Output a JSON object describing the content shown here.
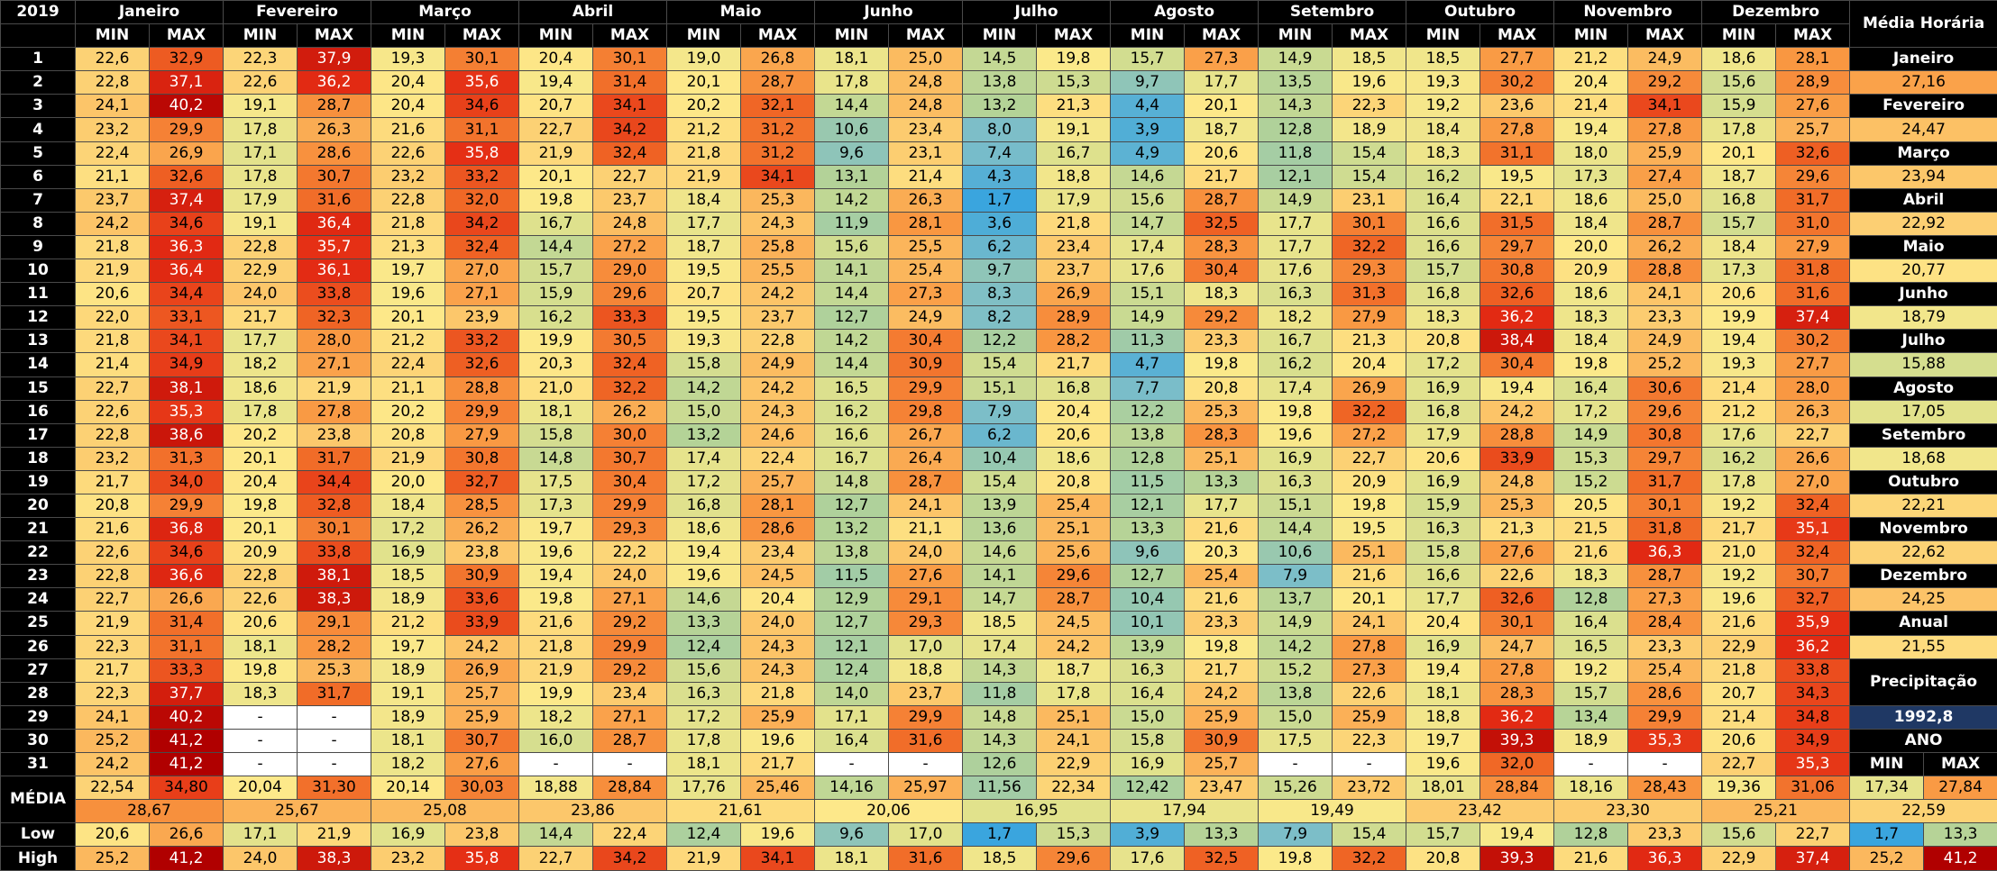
{
  "header": {
    "year": "2019",
    "months": [
      "Janeiro",
      "Fevereiro",
      "Março",
      "Abril",
      "Maio",
      "Junho",
      "Julho",
      "Agosto",
      "Setembro",
      "Outubro",
      "Novembro",
      "Dezembro"
    ],
    "side_title": "Média Horária",
    "min": "MIN",
    "max": "MAX"
  },
  "days": [
    {
      "label": "1",
      "values": [
        "22,6",
        "32,9",
        "22,3",
        "37,9",
        "19,3",
        "30,1",
        "20,4",
        "30,1",
        "19,0",
        "26,8",
        "18,1",
        "25,0",
        "14,5",
        "19,8",
        "15,7",
        "27,3",
        "14,9",
        "18,5",
        "18,5",
        "27,7",
        "21,2",
        "24,9",
        "18,6",
        "28,1"
      ]
    },
    {
      "label": "2",
      "values": [
        "22,8",
        "37,1",
        "22,6",
        "36,2",
        "20,4",
        "35,6",
        "19,4",
        "31,4",
        "20,1",
        "28,7",
        "17,8",
        "24,8",
        "13,8",
        "15,3",
        "9,7",
        "17,7",
        "13,5",
        "19,6",
        "19,3",
        "30,2",
        "20,4",
        "29,2",
        "15,6",
        "28,9"
      ]
    },
    {
      "label": "3",
      "values": [
        "24,1",
        "40,2",
        "19,1",
        "28,7",
        "20,4",
        "34,6",
        "20,7",
        "34,1",
        "20,2",
        "32,1",
        "14,4",
        "24,8",
        "13,2",
        "21,3",
        "4,4",
        "20,1",
        "14,3",
        "22,3",
        "19,2",
        "23,6",
        "21,4",
        "34,1",
        "15,9",
        "27,6"
      ]
    },
    {
      "label": "4",
      "values": [
        "23,2",
        "29,9",
        "17,8",
        "26,3",
        "21,6",
        "31,1",
        "22,7",
        "34,2",
        "21,2",
        "31,2",
        "10,6",
        "23,4",
        "8,0",
        "19,1",
        "3,9",
        "18,7",
        "12,8",
        "18,9",
        "18,4",
        "27,8",
        "19,4",
        "27,8",
        "17,8",
        "25,7"
      ]
    },
    {
      "label": "5",
      "values": [
        "22,4",
        "26,9",
        "17,1",
        "28,6",
        "22,6",
        "35,8",
        "21,9",
        "32,4",
        "21,8",
        "31,2",
        "9,6",
        "23,1",
        "7,4",
        "16,7",
        "4,9",
        "20,6",
        "11,8",
        "15,4",
        "18,3",
        "31,1",
        "18,0",
        "25,9",
        "20,1",
        "32,6"
      ]
    },
    {
      "label": "6",
      "values": [
        "21,1",
        "32,6",
        "17,8",
        "30,7",
        "23,2",
        "33,2",
        "20,1",
        "22,7",
        "21,9",
        "34,1",
        "13,1",
        "21,4",
        "4,3",
        "18,8",
        "14,6",
        "21,7",
        "12,1",
        "15,4",
        "16,2",
        "19,5",
        "17,3",
        "27,4",
        "18,7",
        "29,6"
      ]
    },
    {
      "label": "7",
      "values": [
        "23,7",
        "37,4",
        "17,9",
        "31,6",
        "22,8",
        "32,0",
        "19,8",
        "23,7",
        "18,4",
        "25,3",
        "14,2",
        "26,3",
        "1,7",
        "17,9",
        "15,6",
        "28,7",
        "14,9",
        "23,1",
        "16,4",
        "22,1",
        "18,6",
        "25,0",
        "16,8",
        "31,7"
      ]
    },
    {
      "label": "8",
      "values": [
        "24,2",
        "34,6",
        "19,1",
        "36,4",
        "21,8",
        "34,2",
        "16,7",
        "24,8",
        "17,7",
        "24,3",
        "11,9",
        "28,1",
        "3,6",
        "21,8",
        "14,7",
        "32,5",
        "17,7",
        "30,1",
        "16,6",
        "31,5",
        "18,4",
        "28,7",
        "15,7",
        "31,0"
      ]
    },
    {
      "label": "9",
      "values": [
        "21,8",
        "36,3",
        "22,8",
        "35,7",
        "21,3",
        "32,4",
        "14,4",
        "27,2",
        "18,7",
        "25,8",
        "15,6",
        "25,5",
        "6,2",
        "23,4",
        "17,4",
        "28,3",
        "17,7",
        "32,2",
        "16,6",
        "29,7",
        "20,0",
        "26,2",
        "18,4",
        "27,9"
      ]
    },
    {
      "label": "10",
      "values": [
        "21,9",
        "36,4",
        "22,9",
        "36,1",
        "19,7",
        "27,0",
        "15,7",
        "29,0",
        "19,5",
        "25,5",
        "14,1",
        "25,4",
        "9,7",
        "23,7",
        "17,6",
        "30,4",
        "17,6",
        "29,3",
        "15,7",
        "30,8",
        "20,9",
        "28,8",
        "17,3",
        "31,8"
      ]
    },
    {
      "label": "11",
      "values": [
        "20,6",
        "34,4",
        "24,0",
        "33,8",
        "19,6",
        "27,1",
        "15,9",
        "29,6",
        "20,7",
        "24,2",
        "14,4",
        "27,3",
        "8,3",
        "26,9",
        "15,1",
        "18,3",
        "16,3",
        "31,3",
        "16,8",
        "32,6",
        "18,6",
        "24,1",
        "20,6",
        "31,6"
      ]
    },
    {
      "label": "12",
      "values": [
        "22,0",
        "33,1",
        "21,7",
        "32,3",
        "20,1",
        "23,9",
        "16,2",
        "33,3",
        "19,5",
        "23,7",
        "12,7",
        "24,9",
        "8,2",
        "28,9",
        "14,9",
        "29,2",
        "18,2",
        "27,9",
        "18,3",
        "36,2",
        "18,3",
        "23,3",
        "19,9",
        "37,4"
      ]
    },
    {
      "label": "13",
      "values": [
        "21,8",
        "34,1",
        "17,7",
        "28,0",
        "21,2",
        "33,2",
        "19,9",
        "30,5",
        "19,3",
        "22,8",
        "14,2",
        "30,4",
        "12,2",
        "28,2",
        "11,3",
        "23,3",
        "16,7",
        "21,3",
        "20,8",
        "38,4",
        "18,4",
        "24,9",
        "19,4",
        "30,2"
      ]
    },
    {
      "label": "14",
      "values": [
        "21,4",
        "34,9",
        "18,2",
        "27,1",
        "22,4",
        "32,6",
        "20,3",
        "32,4",
        "15,8",
        "24,9",
        "14,4",
        "30,9",
        "15,4",
        "21,7",
        "4,7",
        "19,8",
        "16,2",
        "20,4",
        "17,2",
        "30,4",
        "19,8",
        "25,2",
        "19,3",
        "27,7"
      ]
    },
    {
      "label": "15",
      "values": [
        "22,7",
        "38,1",
        "18,6",
        "21,9",
        "21,1",
        "28,8",
        "21,0",
        "32,2",
        "14,2",
        "24,2",
        "16,5",
        "29,9",
        "15,1",
        "16,8",
        "7,7",
        "20,8",
        "17,4",
        "26,9",
        "16,9",
        "19,4",
        "16,4",
        "30,6",
        "21,4",
        "28,0"
      ]
    },
    {
      "label": "16",
      "values": [
        "22,6",
        "35,3",
        "17,8",
        "27,8",
        "20,2",
        "29,9",
        "18,1",
        "26,2",
        "15,0",
        "24,3",
        "16,2",
        "29,8",
        "7,9",
        "20,4",
        "12,2",
        "25,3",
        "19,8",
        "32,2",
        "16,8",
        "24,2",
        "17,2",
        "29,6",
        "21,2",
        "26,3"
      ]
    },
    {
      "label": "17",
      "values": [
        "22,8",
        "38,6",
        "20,2",
        "23,8",
        "20,8",
        "27,9",
        "15,8",
        "30,0",
        "13,2",
        "24,6",
        "16,6",
        "26,7",
        "6,2",
        "20,6",
        "13,8",
        "28,3",
        "19,6",
        "27,2",
        "17,9",
        "28,8",
        "14,9",
        "30,8",
        "17,6",
        "22,7"
      ]
    },
    {
      "label": "18",
      "values": [
        "23,2",
        "31,3",
        "20,1",
        "31,7",
        "21,9",
        "30,8",
        "14,8",
        "30,7",
        "17,4",
        "22,4",
        "16,7",
        "26,4",
        "10,4",
        "18,6",
        "12,8",
        "25,1",
        "16,9",
        "22,7",
        "20,6",
        "33,9",
        "15,3",
        "29,7",
        "16,2",
        "26,6"
      ]
    },
    {
      "label": "19",
      "values": [
        "21,7",
        "34,0",
        "20,4",
        "34,4",
        "20,0",
        "32,7",
        "17,5",
        "30,4",
        "17,2",
        "25,7",
        "14,8",
        "28,7",
        "15,4",
        "20,8",
        "11,5",
        "13,3",
        "16,3",
        "20,9",
        "16,9",
        "24,8",
        "15,2",
        "31,7",
        "17,8",
        "27,0"
      ]
    },
    {
      "label": "20",
      "values": [
        "20,8",
        "29,9",
        "19,8",
        "32,8",
        "18,4",
        "28,5",
        "17,3",
        "29,9",
        "16,8",
        "28,1",
        "12,7",
        "24,1",
        "13,9",
        "25,4",
        "12,1",
        "17,7",
        "15,1",
        "19,8",
        "15,9",
        "25,3",
        "20,5",
        "30,1",
        "19,2",
        "32,4"
      ]
    },
    {
      "label": "21",
      "values": [
        "21,6",
        "36,8",
        "20,1",
        "30,1",
        "17,2",
        "26,2",
        "19,7",
        "29,3",
        "18,6",
        "28,6",
        "13,2",
        "21,1",
        "13,6",
        "25,1",
        "13,3",
        "21,6",
        "14,4",
        "19,5",
        "16,3",
        "21,3",
        "21,5",
        "31,8",
        "21,7",
        "35,1"
      ]
    },
    {
      "label": "22",
      "values": [
        "22,6",
        "34,6",
        "20,9",
        "33,8",
        "16,9",
        "23,8",
        "19,6",
        "22,2",
        "19,4",
        "23,4",
        "13,8",
        "24,0",
        "14,6",
        "25,6",
        "9,6",
        "20,3",
        "10,6",
        "25,1",
        "15,8",
        "27,6",
        "21,6",
        "36,3",
        "21,0",
        "32,4"
      ]
    },
    {
      "label": "23",
      "values": [
        "22,8",
        "36,6",
        "22,8",
        "38,1",
        "18,5",
        "30,9",
        "19,4",
        "24,0",
        "19,6",
        "24,5",
        "11,5",
        "27,6",
        "14,1",
        "29,6",
        "12,7",
        "25,4",
        "7,9",
        "21,6",
        "16,6",
        "22,6",
        "18,3",
        "28,7",
        "19,2",
        "30,7"
      ]
    },
    {
      "label": "24",
      "values": [
        "22,7",
        "26,6",
        "22,6",
        "38,3",
        "18,9",
        "33,6",
        "19,8",
        "27,1",
        "14,6",
        "20,4",
        "12,9",
        "29,1",
        "14,7",
        "28,7",
        "10,4",
        "21,6",
        "13,7",
        "20,1",
        "17,7",
        "32,6",
        "12,8",
        "27,3",
        "19,6",
        "32,7"
      ]
    },
    {
      "label": "25",
      "values": [
        "21,9",
        "31,4",
        "20,6",
        "29,1",
        "21,2",
        "33,9",
        "21,6",
        "29,2",
        "13,3",
        "24,0",
        "12,7",
        "29,3",
        "18,5",
        "24,5",
        "10,1",
        "23,3",
        "14,9",
        "24,1",
        "20,4",
        "30,1",
        "16,4",
        "28,4",
        "21,6",
        "35,9"
      ]
    },
    {
      "label": "26",
      "values": [
        "22,3",
        "31,1",
        "18,1",
        "28,2",
        "19,7",
        "24,2",
        "21,8",
        "29,9",
        "12,4",
        "24,3",
        "12,1",
        "17,0",
        "17,4",
        "24,2",
        "13,9",
        "19,8",
        "14,2",
        "27,8",
        "16,9",
        "24,7",
        "16,5",
        "23,3",
        "22,9",
        "36,2"
      ]
    },
    {
      "label": "27",
      "values": [
        "21,7",
        "33,3",
        "19,8",
        "25,3",
        "18,9",
        "26,9",
        "21,9",
        "29,2",
        "15,6",
        "24,3",
        "12,4",
        "18,8",
        "14,3",
        "18,7",
        "16,3",
        "21,7",
        "15,2",
        "27,3",
        "19,4",
        "27,8",
        "19,2",
        "25,4",
        "21,8",
        "33,8"
      ]
    },
    {
      "label": "28",
      "values": [
        "22,3",
        "37,7",
        "18,3",
        "31,7",
        "19,1",
        "25,7",
        "19,9",
        "23,4",
        "16,3",
        "21,8",
        "14,0",
        "23,7",
        "11,8",
        "17,8",
        "16,4",
        "24,2",
        "13,8",
        "22,6",
        "18,1",
        "28,3",
        "15,7",
        "28,6",
        "20,7",
        "34,3"
      ]
    },
    {
      "label": "29",
      "values": [
        "24,1",
        "40,2",
        "-",
        "-",
        "18,9",
        "25,9",
        "18,2",
        "27,1",
        "17,2",
        "25,9",
        "17,1",
        "29,9",
        "14,8",
        "25,1",
        "15,0",
        "25,9",
        "15,0",
        "25,9",
        "18,8",
        "36,2",
        "13,4",
        "29,9",
        "21,4",
        "34,8"
      ]
    },
    {
      "label": "30",
      "values": [
        "25,2",
        "41,2",
        "-",
        "-",
        "18,1",
        "30,7",
        "16,0",
        "28,7",
        "17,8",
        "19,6",
        "16,4",
        "31,6",
        "14,3",
        "24,1",
        "15,8",
        "30,9",
        "17,5",
        "22,3",
        "19,7",
        "39,3",
        "18,9",
        "35,3",
        "20,6",
        "34,9"
      ]
    },
    {
      "label": "31",
      "values": [
        "24,2",
        "41,2",
        "-",
        "-",
        "18,2",
        "27,6",
        "-",
        "-",
        "18,1",
        "21,7",
        "-",
        "-",
        "12,6",
        "22,9",
        "16,9",
        "25,7",
        "-",
        "-",
        "19,6",
        "32,0",
        "-",
        "-",
        "22,7",
        "35,3"
      ]
    }
  ],
  "side": {
    "monthly": [
      "27,16",
      "24,47",
      "23,94",
      "22,92",
      "20,77",
      "18,79",
      "15,88",
      "17,05",
      "18,68",
      "22,21",
      "22,62",
      "24,25"
    ],
    "annual_label": "Anual",
    "annual": "21,55",
    "precip_label": "Precipitação",
    "precip": "1992,8",
    "year_label": "ANO"
  },
  "summary": {
    "label": "MÉDIA",
    "avg": [
      "22,54",
      "34,80",
      "20,04",
      "31,30",
      "20,14",
      "30,03",
      "18,88",
      "28,84",
      "17,76",
      "25,46",
      "14,16",
      "25,97",
      "11,56",
      "22,34",
      "12,42",
      "23,47",
      "15,26",
      "23,72",
      "18,01",
      "28,84",
      "18,16",
      "28,43",
      "19,36",
      "31,06"
    ],
    "avg_side": [
      "17,34",
      "27,84"
    ],
    "month_avg": [
      "28,67",
      "25,67",
      "25,08",
      "23,86",
      "21,61",
      "20,06",
      "16,95",
      "17,94",
      "19,49",
      "23,42",
      "23,30",
      "25,21"
    ],
    "month_avg_side": "22,59",
    "low_label": "Low",
    "low": [
      "20,6",
      "26,6",
      "17,1",
      "21,9",
      "16,9",
      "23,8",
      "14,4",
      "22,4",
      "12,4",
      "19,6",
      "9,6",
      "17,0",
      "1,7",
      "15,3",
      "3,9",
      "13,3",
      "7,9",
      "15,4",
      "15,7",
      "19,4",
      "12,8",
      "23,3",
      "15,6",
      "22,7"
    ],
    "low_side": [
      "1,7",
      "13,3"
    ],
    "high_label": "High",
    "high": [
      "25,2",
      "41,2",
      "24,0",
      "38,3",
      "23,2",
      "35,8",
      "22,7",
      "34,2",
      "21,9",
      "34,1",
      "18,1",
      "31,6",
      "18,5",
      "29,6",
      "17,6",
      "32,5",
      "19,8",
      "32,2",
      "20,8",
      "39,3",
      "21,6",
      "36,3",
      "22,9",
      "37,4"
    ],
    "high_side": [
      "25,2",
      "41,2"
    ]
  }
}
